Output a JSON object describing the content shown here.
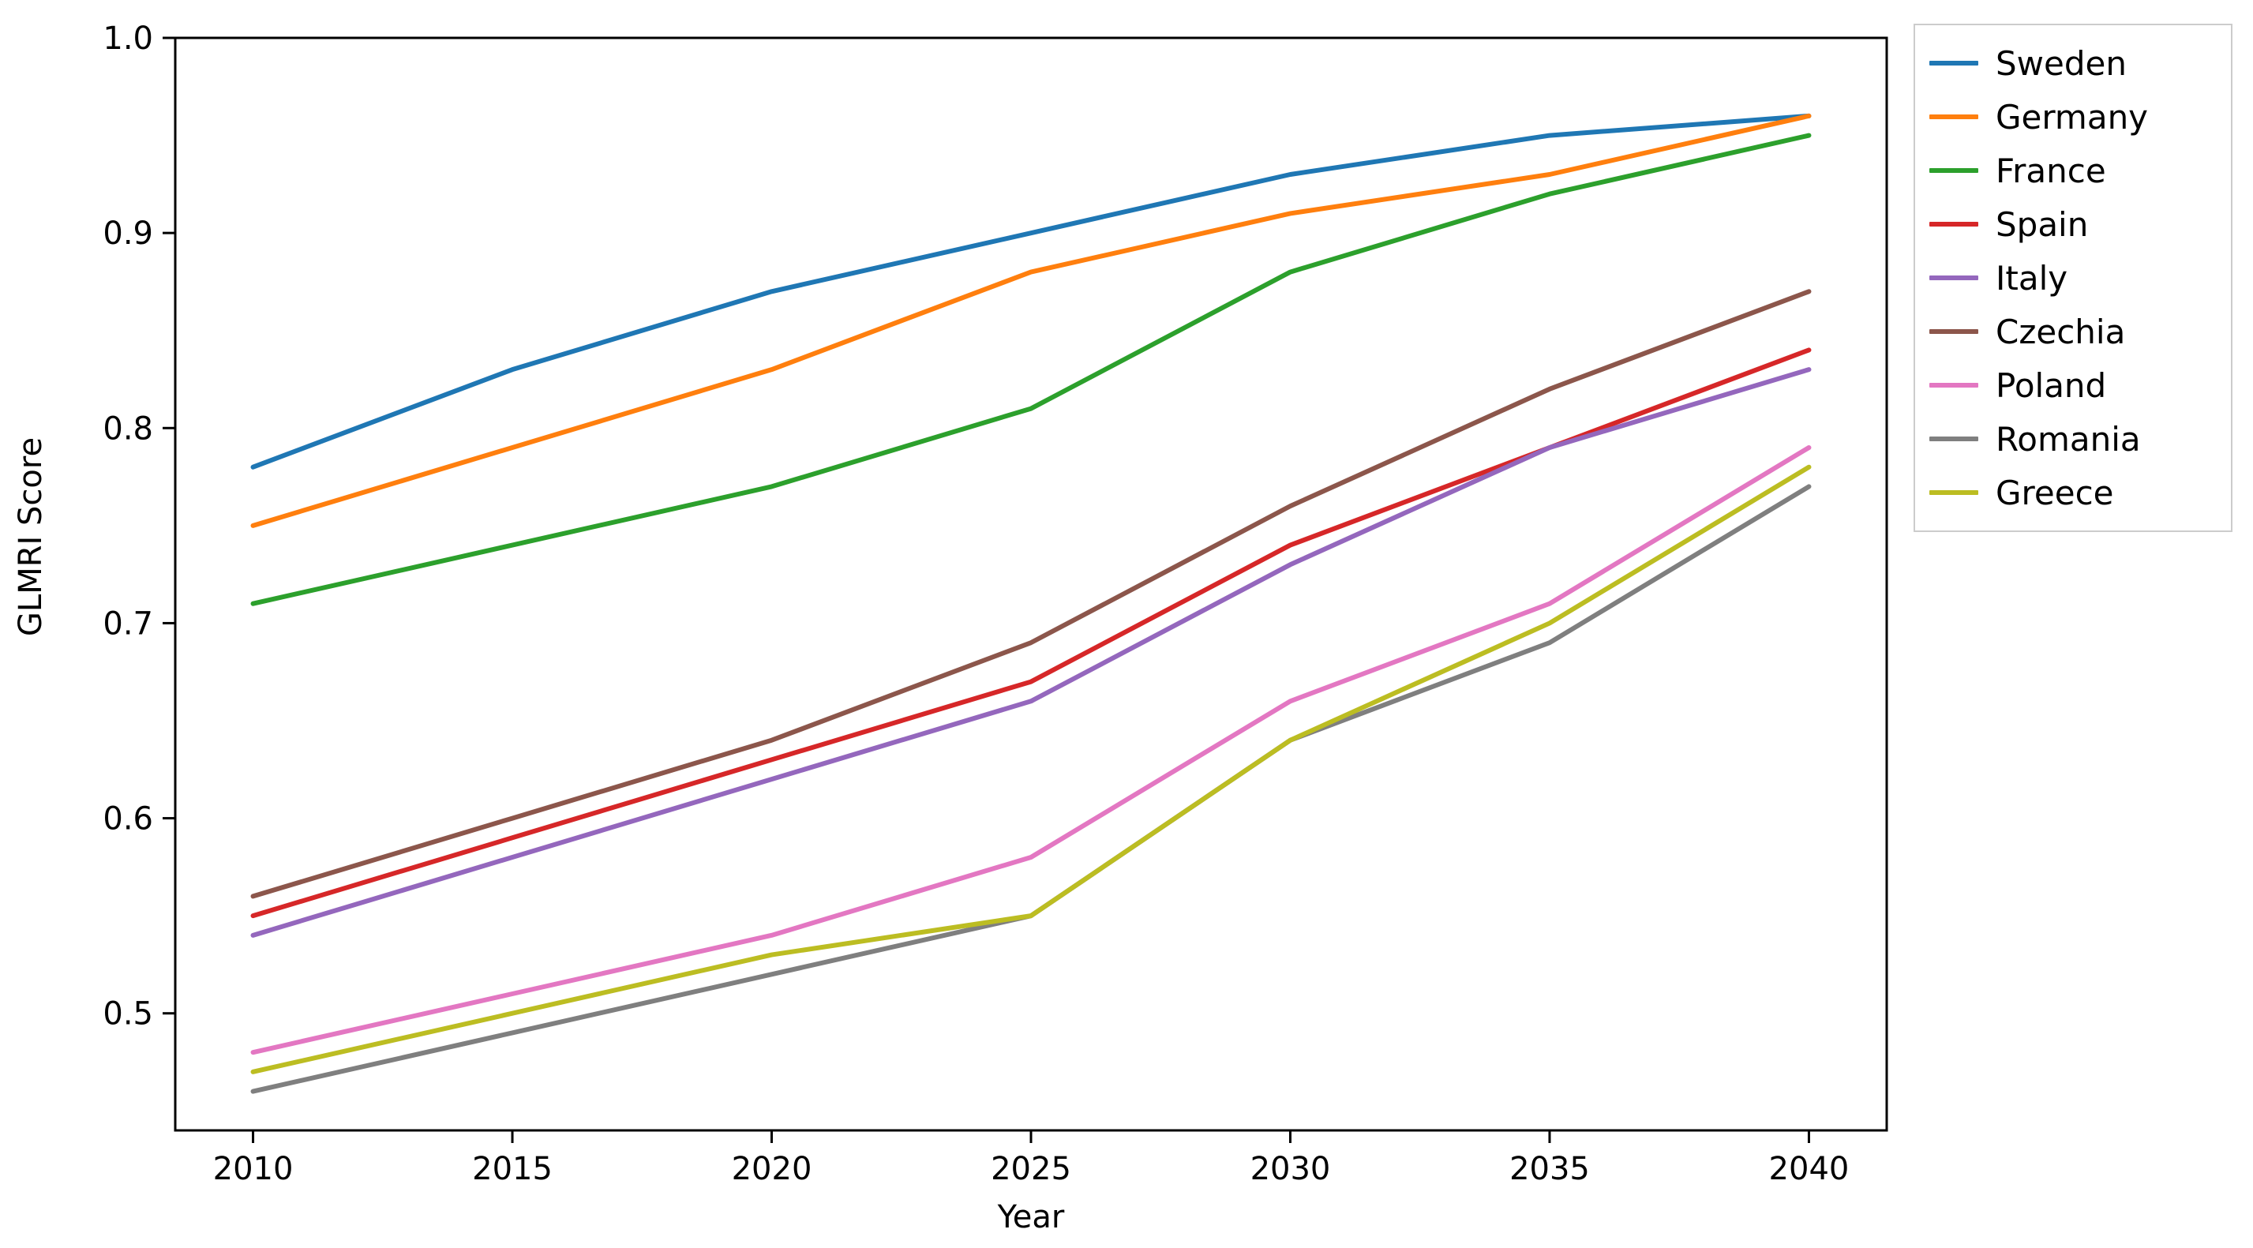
{
  "chart_data": {
    "type": "line",
    "title": "",
    "xlabel": "Year",
    "ylabel": "GLMRI Score",
    "x": [
      2010,
      2015,
      2020,
      2025,
      2030,
      2035,
      2040
    ],
    "xticks": [
      2010,
      2015,
      2020,
      2025,
      2030,
      2035,
      2040
    ],
    "yticks": [
      0.5,
      0.6,
      0.7,
      0.8,
      0.9,
      1.0
    ],
    "xlim": [
      2008.5,
      2041.5
    ],
    "ylim": [
      0.44,
      1.0
    ],
    "grid": false,
    "legend_position": "outside-right-top",
    "axis_color": "#000000",
    "series": [
      {
        "name": "Sweden",
        "color": "#1f77b4",
        "values": [
          0.78,
          0.83,
          0.87,
          0.9,
          0.93,
          0.95,
          0.96
        ]
      },
      {
        "name": "Germany",
        "color": "#ff7f0e",
        "values": [
          0.75,
          0.79,
          0.83,
          0.88,
          0.91,
          0.93,
          0.96
        ]
      },
      {
        "name": "France",
        "color": "#2ca02c",
        "values": [
          0.71,
          0.74,
          0.77,
          0.81,
          0.88,
          0.92,
          0.95
        ]
      },
      {
        "name": "Spain",
        "color": "#d62728",
        "values": [
          0.55,
          0.59,
          0.63,
          0.67,
          0.74,
          0.79,
          0.84
        ]
      },
      {
        "name": "Italy",
        "color": "#9467bd",
        "values": [
          0.54,
          0.58,
          0.62,
          0.66,
          0.73,
          0.79,
          0.83
        ]
      },
      {
        "name": "Czechia",
        "color": "#8c564b",
        "values": [
          0.56,
          0.6,
          0.64,
          0.69,
          0.76,
          0.82,
          0.87
        ]
      },
      {
        "name": "Poland",
        "color": "#e377c2",
        "values": [
          0.48,
          0.51,
          0.54,
          0.58,
          0.66,
          0.71,
          0.79
        ]
      },
      {
        "name": "Romania",
        "color": "#7f7f7f",
        "values": [
          0.46,
          0.49,
          0.52,
          0.55,
          0.64,
          0.69,
          0.77
        ]
      },
      {
        "name": "Greece",
        "color": "#bcbd22",
        "values": [
          0.47,
          0.5,
          0.53,
          0.55,
          0.64,
          0.7,
          0.78
        ]
      }
    ]
  }
}
